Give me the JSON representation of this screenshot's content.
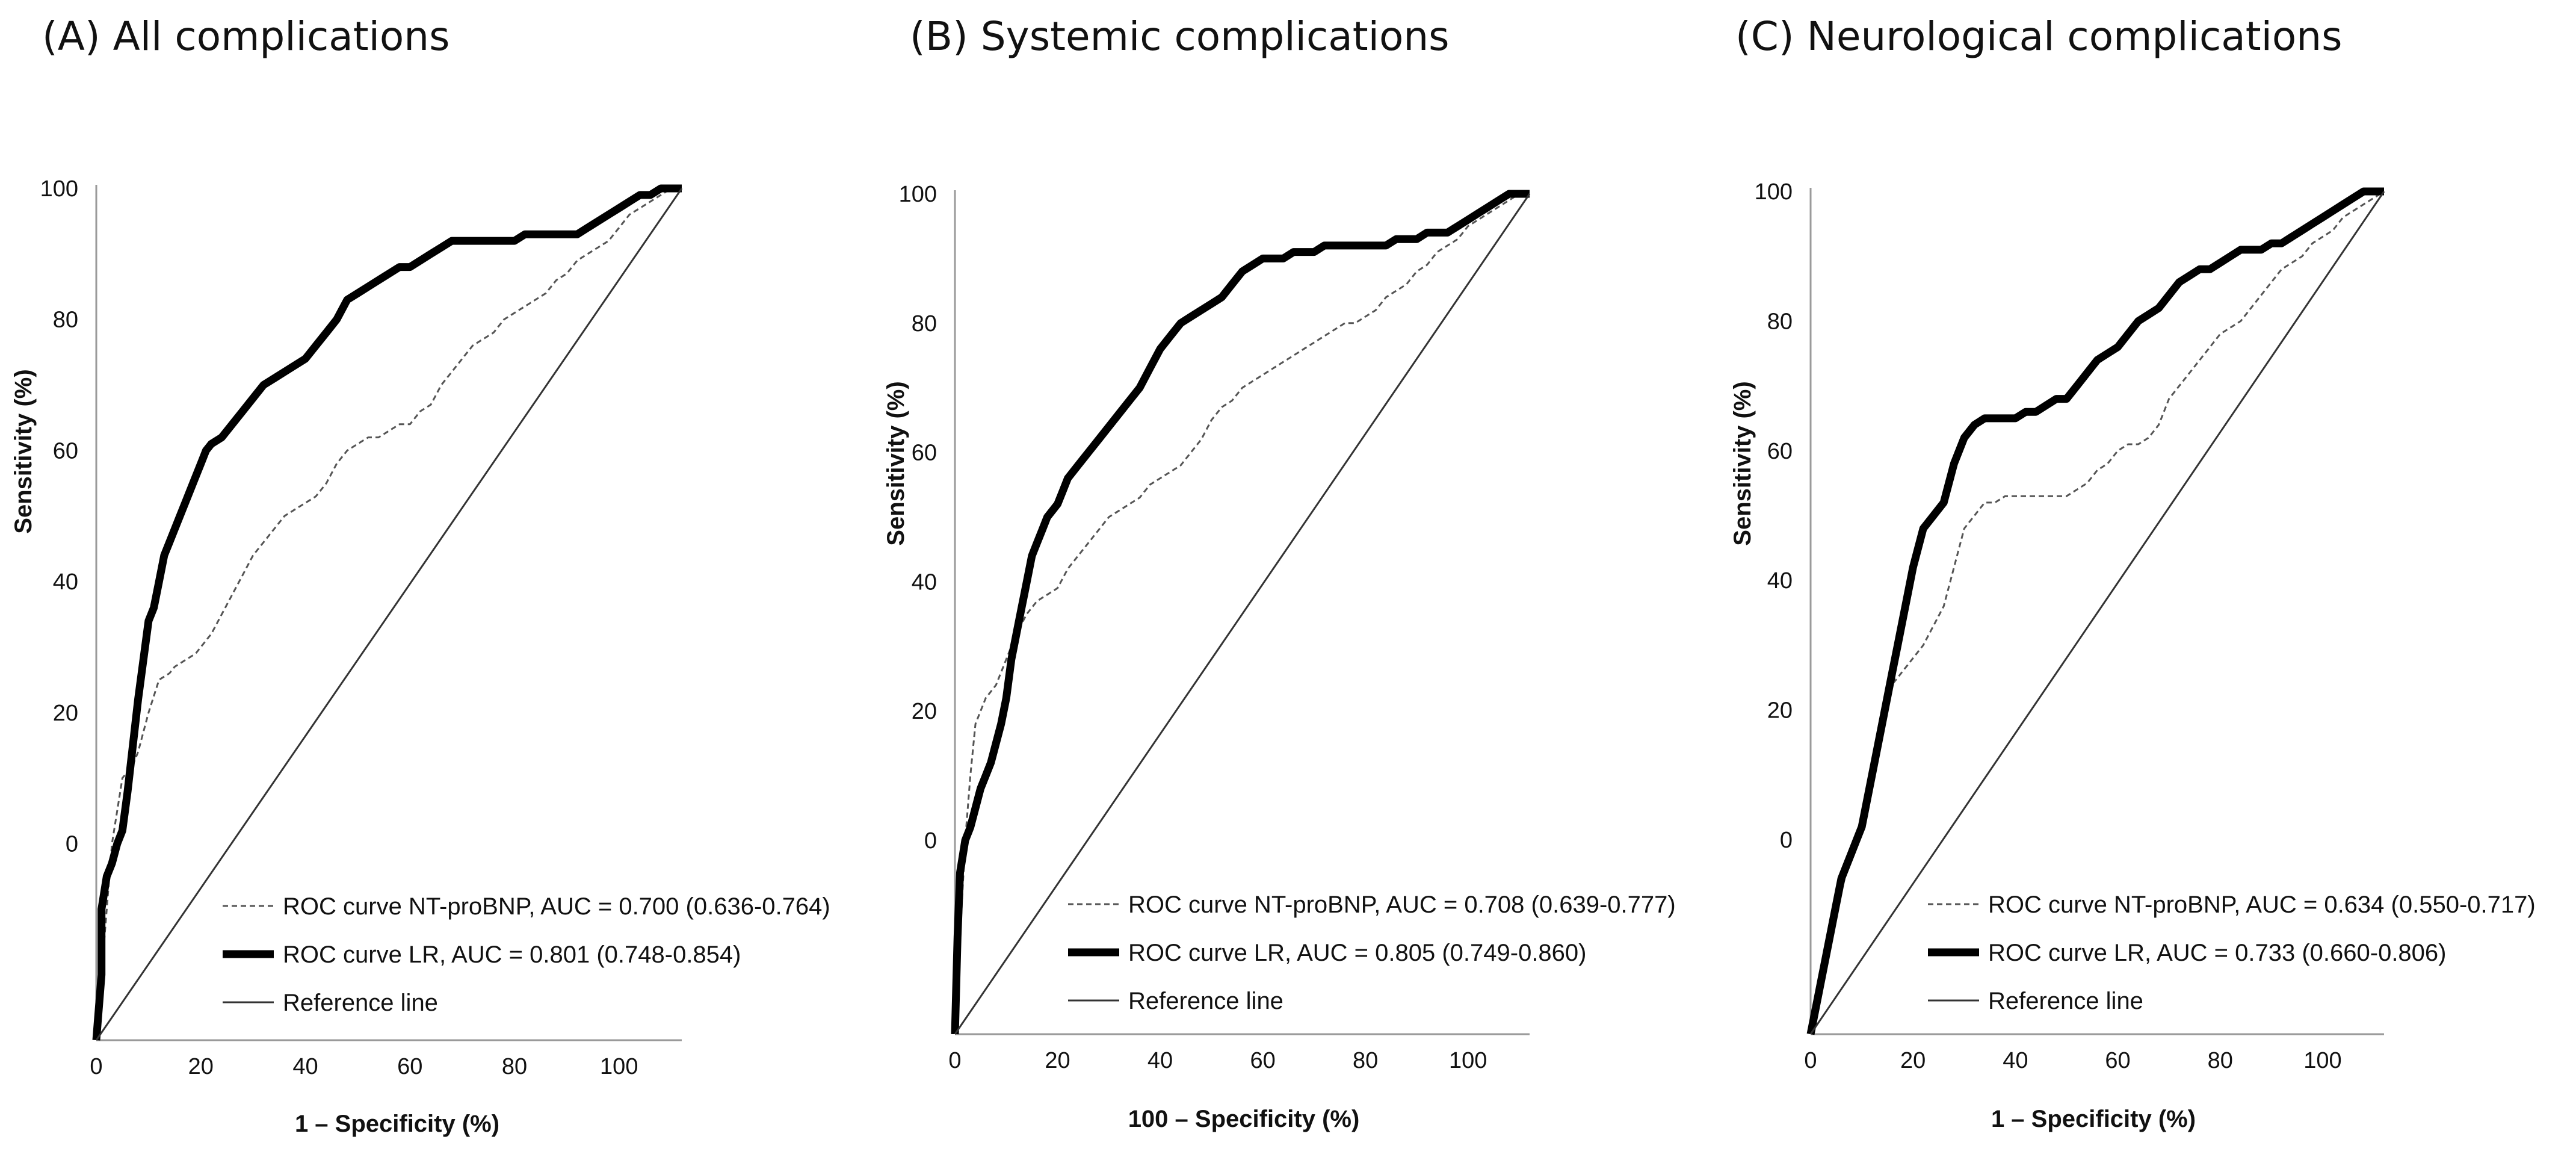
{
  "chart_data": [
    {
      "type": "line",
      "title": "(A) All complications",
      "xlabel": "1 – Specificity (%)",
      "ylabel": "Sensitivity (%)",
      "xticks": [
        "0",
        "20",
        "40",
        "60",
        "80",
        "100"
      ],
      "yticks": [
        "0",
        "20",
        "40",
        "60",
        "80",
        "100"
      ],
      "xlim": [
        0,
        112
      ],
      "ylim": [
        -30,
        100
      ],
      "grid": false,
      "legend_position": "bottom-right",
      "series": [
        {
          "name": "ROC curve NT-proBNP, AUC = 0.700 (0.636-0.764)",
          "style": "dashed",
          "color": "#555555",
          "x": [
            0,
            1,
            2,
            3,
            5,
            7,
            8,
            9,
            10,
            12,
            14,
            15,
            17,
            19,
            20,
            21,
            22,
            24,
            26,
            28,
            30,
            32,
            34,
            36,
            38,
            40,
            42,
            44,
            46,
            48,
            50,
            52,
            54,
            56,
            58,
            60,
            62,
            64,
            66,
            68,
            70,
            72,
            74,
            76,
            78,
            80,
            82,
            84,
            86,
            88,
            90,
            92,
            94,
            96,
            98,
            100,
            102,
            104,
            106,
            108,
            110,
            112
          ],
          "y": [
            -30,
            -20,
            -10,
            0,
            10,
            12,
            14,
            17,
            20,
            25,
            26,
            27,
            28,
            29,
            30,
            31,
            32,
            35,
            38,
            41,
            44,
            46,
            48,
            50,
            51,
            52,
            53,
            55,
            58,
            60,
            61,
            62,
            62,
            63,
            64,
            64,
            66,
            67,
            70,
            72,
            74,
            76,
            77,
            78,
            80,
            81,
            82,
            83,
            84,
            86,
            87,
            89,
            90,
            91,
            92,
            94,
            96,
            97,
            98,
            99,
            100,
            100
          ]
        },
        {
          "name": "ROC curve LR, AUC = 0.801 (0.748-0.854)",
          "style": "thick",
          "color": "#000000",
          "x": [
            0,
            1,
            1,
            2,
            3,
            4,
            5,
            6,
            7,
            8,
            9,
            10,
            11,
            12,
            13,
            14,
            15,
            16,
            17,
            18,
            19,
            20,
            21,
            22,
            24,
            26,
            28,
            30,
            32,
            34,
            36,
            38,
            40,
            42,
            44,
            46,
            48,
            50,
            52,
            54,
            56,
            58,
            60,
            62,
            64,
            66,
            68,
            70,
            72,
            74,
            76,
            78,
            80,
            82,
            84,
            86,
            88,
            90,
            92,
            94,
            96,
            98,
            100,
            102,
            104,
            106,
            108,
            110,
            112
          ],
          "y": [
            -30,
            -20,
            -10,
            -5,
            -3,
            0,
            2,
            8,
            15,
            22,
            28,
            34,
            36,
            40,
            44,
            46,
            48,
            50,
            52,
            54,
            56,
            58,
            60,
            61,
            62,
            64,
            66,
            68,
            70,
            71,
            72,
            73,
            74,
            76,
            78,
            80,
            83,
            84,
            85,
            86,
            87,
            88,
            88,
            89,
            90,
            91,
            92,
            92,
            92,
            92,
            92,
            92,
            92,
            93,
            93,
            93,
            93,
            93,
            93,
            94,
            95,
            96,
            97,
            98,
            99,
            99,
            100,
            100,
            100
          ]
        },
        {
          "name": "Reference line",
          "style": "thin",
          "color": "#333333",
          "x": [
            0,
            112
          ],
          "y": [
            -30,
            100
          ]
        }
      ]
    },
    {
      "type": "line",
      "title": "(B) Systemic complications",
      "xlabel": "100 – Specificity (%)",
      "ylabel": "Sensitivity (%)",
      "xticks": [
        "0",
        "20",
        "40",
        "60",
        "80",
        "100"
      ],
      "yticks": [
        "0",
        "20",
        "40",
        "60",
        "80",
        "100"
      ],
      "xlim": [
        0,
        112
      ],
      "ylim": [
        -30,
        100
      ],
      "grid": false,
      "legend_position": "bottom-right",
      "series": [
        {
          "name": "ROC curve NT-proBNP, AUC = 0.708 (0.639-0.777)",
          "style": "dashed",
          "color": "#555555",
          "x": [
            0,
            1,
            2,
            3,
            4,
            6,
            8,
            10,
            12,
            14,
            16,
            18,
            20,
            22,
            24,
            26,
            28,
            30,
            32,
            34,
            36,
            38,
            40,
            42,
            44,
            46,
            48,
            50,
            52,
            54,
            56,
            58,
            60,
            62,
            64,
            66,
            68,
            70,
            72,
            74,
            76,
            78,
            80,
            82,
            84,
            86,
            88,
            90,
            92,
            94,
            96,
            98,
            100,
            102,
            104,
            106,
            108,
            110,
            112
          ],
          "y": [
            -30,
            -15,
            0,
            10,
            18,
            22,
            24,
            28,
            32,
            35,
            37,
            38,
            39,
            42,
            44,
            46,
            48,
            50,
            51,
            52,
            53,
            55,
            56,
            57,
            58,
            60,
            62,
            65,
            67,
            68,
            70,
            71,
            72,
            73,
            74,
            75,
            76,
            77,
            78,
            79,
            80,
            80,
            81,
            82,
            84,
            85,
            86,
            88,
            89,
            91,
            92,
            93,
            95,
            96,
            97,
            98,
            99,
            100,
            100
          ]
        },
        {
          "name": "ROC curve LR, AUC = 0.805 (0.749-0.860)",
          "style": "thick",
          "color": "#000000",
          "x": [
            0,
            0.5,
            1,
            2,
            3,
            4,
            5,
            6,
            7,
            8,
            9,
            10,
            11,
            12,
            13,
            14,
            15,
            16,
            17,
            18,
            19,
            20,
            21,
            22,
            24,
            26,
            28,
            30,
            32,
            34,
            36,
            38,
            40,
            42,
            44,
            46,
            48,
            50,
            52,
            54,
            56,
            58,
            60,
            62,
            64,
            66,
            68,
            70,
            72,
            74,
            76,
            78,
            80,
            82,
            84,
            86,
            88,
            90,
            92,
            94,
            96,
            98,
            100,
            102,
            104,
            106,
            108,
            110,
            112
          ],
          "y": [
            -30,
            -15,
            -5,
            0,
            2,
            5,
            8,
            10,
            12,
            15,
            18,
            22,
            28,
            32,
            36,
            40,
            44,
            46,
            48,
            50,
            51,
            52,
            54,
            56,
            58,
            60,
            62,
            64,
            66,
            68,
            70,
            73,
            76,
            78,
            80,
            81,
            82,
            83,
            84,
            86,
            88,
            89,
            90,
            90,
            90,
            91,
            91,
            91,
            92,
            92,
            92,
            92,
            92,
            92,
            92,
            93,
            93,
            93,
            94,
            94,
            94,
            95,
            96,
            97,
            98,
            99,
            100,
            100,
            100
          ]
        },
        {
          "name": "Reference line",
          "style": "thin",
          "color": "#333333",
          "x": [
            0,
            112
          ],
          "y": [
            -30,
            100
          ]
        }
      ]
    },
    {
      "type": "line",
      "title": "(C) Neurological complications",
      "xlabel": "1 – Specificity (%)",
      "ylabel": "Sensitivity (%)",
      "xticks": [
        "0",
        "20",
        "40",
        "60",
        "80",
        "100"
      ],
      "yticks": [
        "0",
        "20",
        "40",
        "60",
        "80",
        "100"
      ],
      "xlim": [
        0,
        112
      ],
      "ylim": [
        -30,
        100
      ],
      "grid": false,
      "legend_position": "bottom-right",
      "series": [
        {
          "name": "ROC curve NT-proBNP, AUC = 0.634 (0.550-0.717)",
          "style": "dashed",
          "color": "#555555",
          "x": [
            0,
            1,
            2,
            3,
            4,
            5,
            6,
            7,
            8,
            9,
            10,
            11,
            12,
            13,
            14,
            15,
            16,
            17,
            18,
            19,
            20,
            22,
            24,
            26,
            28,
            30,
            32,
            34,
            36,
            38,
            40,
            42,
            44,
            46,
            48,
            50,
            52,
            54,
            56,
            58,
            60,
            62,
            64,
            66,
            68,
            70,
            72,
            74,
            76,
            78,
            80,
            82,
            84,
            86,
            88,
            90,
            92,
            94,
            96,
            98,
            100,
            102,
            104,
            106,
            108,
            110,
            112
          ],
          "y": [
            -30,
            -27,
            -24,
            -20,
            -16,
            -12,
            -8,
            -5,
            -3,
            -1,
            3,
            6,
            10,
            14,
            18,
            22,
            24,
            25,
            26,
            27,
            28,
            30,
            33,
            36,
            42,
            48,
            50,
            52,
            52,
            53,
            53,
            53,
            53,
            53,
            53,
            53,
            54,
            55,
            57,
            58,
            60,
            61,
            61,
            62,
            64,
            68,
            70,
            72,
            74,
            76,
            78,
            79,
            80,
            82,
            84,
            86,
            88,
            89,
            90,
            92,
            93,
            94,
            96,
            97,
            98,
            99,
            100
          ]
        },
        {
          "name": "ROC curve LR, AUC = 0.733 (0.660-0.806)",
          "style": "thick",
          "color": "#000000",
          "x": [
            0,
            1,
            2,
            3,
            4,
            5,
            6,
            7,
            8,
            9,
            10,
            11,
            12,
            13,
            14,
            15,
            16,
            17,
            18,
            19,
            20,
            22,
            24,
            26,
            28,
            30,
            32,
            34,
            36,
            38,
            40,
            42,
            44,
            46,
            48,
            50,
            52,
            54,
            56,
            58,
            60,
            62,
            64,
            66,
            68,
            70,
            72,
            74,
            76,
            78,
            80,
            82,
            84,
            86,
            88,
            90,
            92,
            94,
            96,
            98,
            100,
            102,
            104,
            106,
            108,
            110,
            112
          ],
          "y": [
            -30,
            -26,
            -22,
            -18,
            -14,
            -10,
            -6,
            -4,
            -2,
            0,
            2,
            6,
            10,
            14,
            18,
            22,
            26,
            30,
            34,
            38,
            42,
            48,
            50,
            52,
            58,
            62,
            64,
            65,
            65,
            65,
            65,
            66,
            66,
            67,
            68,
            68,
            70,
            72,
            74,
            75,
            76,
            78,
            80,
            81,
            82,
            84,
            86,
            87,
            88,
            88,
            89,
            90,
            91,
            91,
            91,
            92,
            92,
            93,
            94,
            95,
            96,
            97,
            98,
            99,
            100,
            100,
            100
          ]
        },
        {
          "name": "Reference line",
          "style": "thin",
          "color": "#333333",
          "x": [
            0,
            112
          ],
          "y": [
            -30,
            100
          ]
        }
      ]
    }
  ]
}
